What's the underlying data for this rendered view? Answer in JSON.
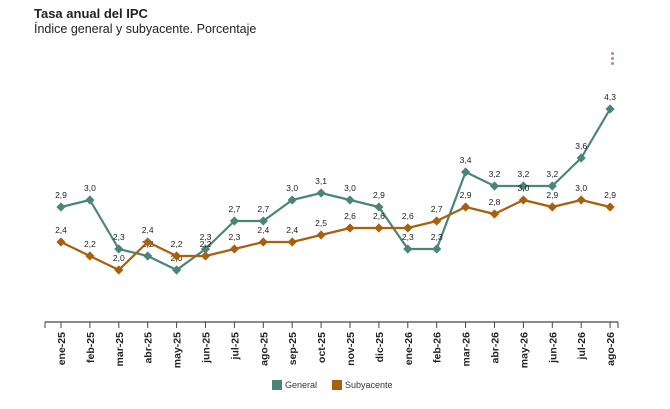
{
  "header": {
    "title": "Tasa anual del IPC",
    "subtitle": "Índice general y subyacente. Porcentaje"
  },
  "menu": {
    "icon": "more-vert-icon"
  },
  "colors": {
    "general": "#4b8579",
    "subyacente": "#a8600d",
    "axis": "#444444",
    "text": "#222222"
  },
  "chart_data": {
    "type": "line",
    "title": "Tasa anual del IPC",
    "subtitle": "Índice general y subyacente. Porcentaje",
    "xlabel": "",
    "ylabel": "",
    "grid": false,
    "legend_position": "bottom",
    "categories": [
      "ene-25",
      "feb-25",
      "mar-25",
      "abr-25",
      "may-25",
      "jun-25",
      "jul-25",
      "ago-25",
      "sep-25",
      "oct-25",
      "nov-25",
      "dic-25",
      "ene-26",
      "feb-26",
      "mar-26",
      "abr-26",
      "may-26",
      "jun-26",
      "jul-26",
      "ago-26"
    ],
    "series": [
      {
        "name": "General",
        "color": "#4b8579",
        "values": [
          2.9,
          3.0,
          2.3,
          2.2,
          2.0,
          2.3,
          2.7,
          2.7,
          3.0,
          3.1,
          3.0,
          2.9,
          2.3,
          2.3,
          3.4,
          3.2,
          3.2,
          3.2,
          3.6,
          4.3
        ],
        "labels": [
          "2,9",
          "3,0",
          "2,3",
          "2,2",
          "2,0",
          "2,3",
          "2,7",
          "2,7",
          "3,0",
          "3,1",
          "3,0",
          "2,9",
          "2,3",
          "2,3",
          "3,4",
          "3,2",
          "3,2",
          "3,2",
          "3,6",
          "4,3"
        ]
      },
      {
        "name": "Subyacente",
        "color": "#a8600d",
        "values": [
          2.4,
          2.2,
          2.0,
          2.4,
          2.2,
          2.2,
          2.3,
          2.4,
          2.4,
          2.5,
          2.6,
          2.6,
          2.6,
          2.7,
          2.9,
          2.8,
          3.0,
          2.9,
          3.0,
          2.9
        ],
        "labels": [
          "2,4",
          "2,2",
          "2,0",
          "2,4",
          "2,2",
          "2,2",
          "2,3",
          "2,4",
          "2,4",
          "2,5",
          "2,6",
          "2,6",
          "2,6",
          "2,7",
          "2,9",
          "2,8",
          "3,0",
          "2,9",
          "3,0",
          "2,9"
        ]
      }
    ]
  }
}
